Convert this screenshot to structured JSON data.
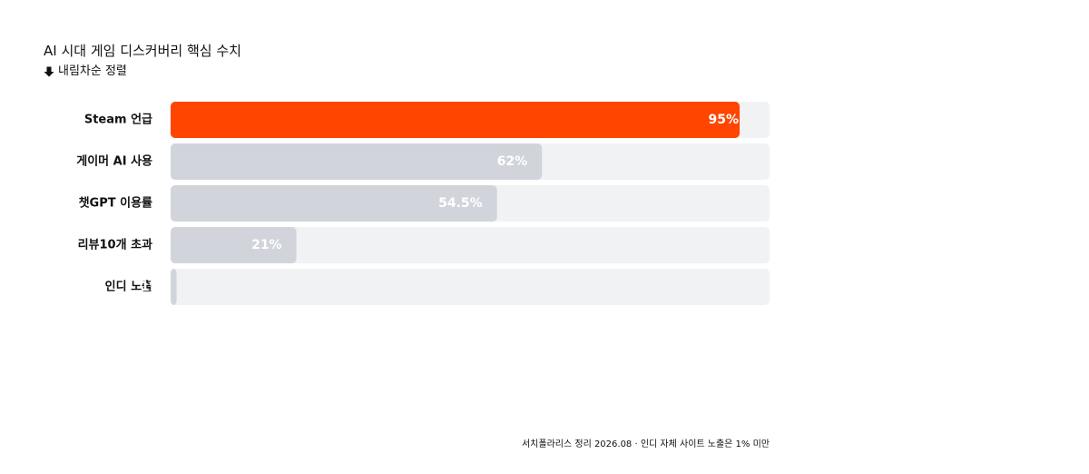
{
  "title": "AI 시대 게임 디스커버리 핵심 수치",
  "subtitle": "내림차순 정렬",
  "footer": "서치폴라리스 정리 2026.08 · 인디 자체 사이트 노출은 1% 미만",
  "colors": {
    "highlight": "#FF4500",
    "bar": "#D1D4DB",
    "track": "#F1F2F4",
    "value_text": "#FFFFFF",
    "label_text": "#111111"
  },
  "chart_data": {
    "type": "bar",
    "orientation": "horizontal",
    "sort": "descending",
    "categories": [
      "Steam 언급",
      "게이머 AI 사용",
      "챗GPT 이용률",
      "리뷰10개 초과",
      "인디 노출"
    ],
    "values": [
      95,
      62,
      54.5,
      21,
      1
    ],
    "value_labels": [
      "95%",
      "62%",
      "54.5%",
      "21%",
      "1%"
    ],
    "xlim": [
      0,
      100
    ],
    "highlight_index": 0,
    "grid": false
  }
}
